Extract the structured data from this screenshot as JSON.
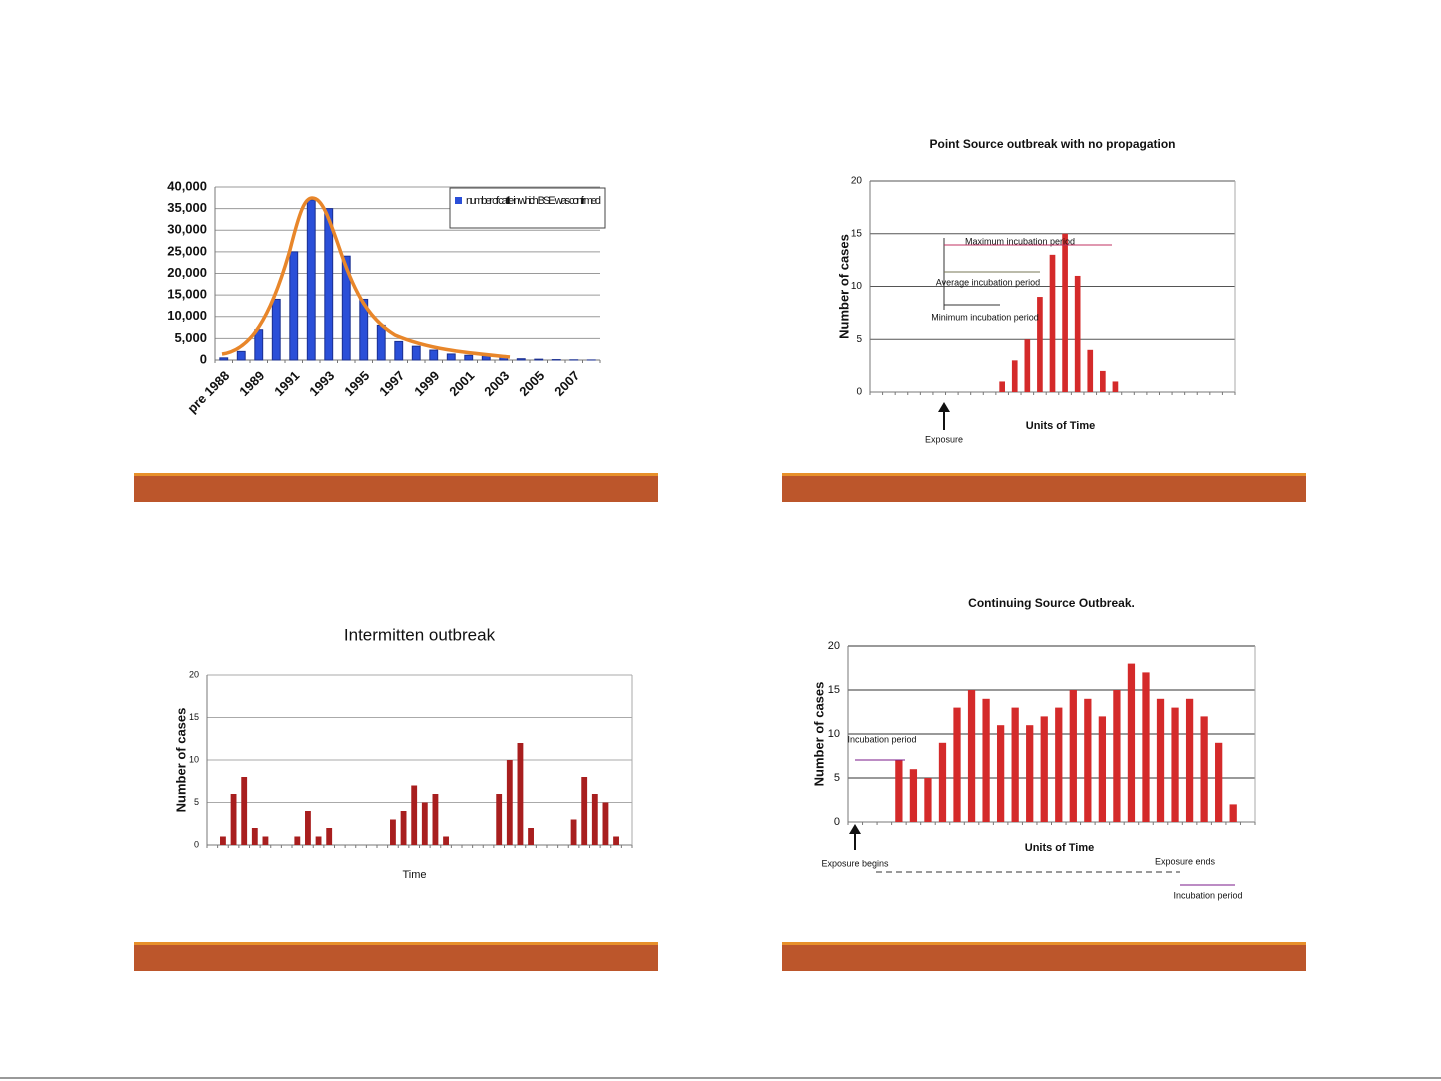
{
  "chart_data": [
    {
      "type": "bar",
      "legend": "number of cattle in which BSE was confirmed",
      "categories": [
        "pre 1988",
        null,
        "1989",
        null,
        "1991",
        null,
        "1993",
        null,
        "1995",
        null,
        "1997",
        null,
        "1999",
        null,
        "2001",
        null,
        "2003",
        null,
        "2005",
        null,
        "2007",
        null
      ],
      "values": [
        500,
        2000,
        7000,
        14000,
        25000,
        37000,
        35000,
        24000,
        14000,
        8000,
        4300,
        3200,
        2300,
        1400,
        1100,
        1000,
        600,
        300,
        200,
        100,
        50,
        20
      ],
      "color": "#2a4fd8",
      "ylim": [
        0,
        40000
      ],
      "yticks": [
        0,
        {
          "value": 5000,
          "label": "5,000"
        },
        {
          "value": 10000,
          "label": "10,000"
        },
        {
          "value": 15000,
          "label": "15,000"
        },
        {
          "value": 20000,
          "label": "20,000"
        },
        {
          "value": 25000,
          "label": "25,000"
        },
        {
          "value": 30000,
          "label": "30,000"
        },
        {
          "value": 35000,
          "label": "35,000"
        },
        {
          "value": 40000,
          "label": "40,000"
        }
      ],
      "grid": true
    },
    {
      "type": "bar",
      "title": "Point Source outbreak with no propagation",
      "xlabel": "Units of Time",
      "ylabel": "Number of cases",
      "annotations": [
        "Maximum incubation period",
        "Average incubation period",
        "Minimum incubation period",
        "Exposure"
      ],
      "categories": [
        null,
        null,
        null,
        null,
        null,
        null,
        null,
        null,
        null,
        null,
        null,
        null,
        null,
        null,
        null,
        null,
        null,
        null,
        null,
        null,
        null,
        null,
        null,
        null,
        null,
        null,
        null,
        null,
        null
      ],
      "values": [
        null,
        null,
        null,
        null,
        null,
        null,
        null,
        null,
        null,
        null,
        1,
        3,
        5,
        9,
        13,
        15,
        11,
        4,
        2,
        1,
        null,
        null,
        null,
        null,
        null,
        null,
        null,
        null,
        null
      ],
      "color": "#d42a2a",
      "ylim": [
        0,
        20
      ],
      "yticks": [
        0,
        5,
        10,
        15,
        20
      ],
      "grid": true
    },
    {
      "type": "bar",
      "title": "Intermitten outbreak",
      "xlabel": "Time",
      "ylabel": "Number of cases",
      "categories": [
        null,
        null,
        null,
        null,
        null,
        null,
        null,
        null,
        null,
        null,
        null,
        null,
        null,
        null,
        null,
        null,
        null,
        null,
        null,
        null,
        null,
        null,
        null,
        null,
        null,
        null,
        null,
        null,
        null,
        null,
        null,
        null,
        null,
        null,
        null,
        null,
        null,
        null,
        null,
        null
      ],
      "values": [
        null,
        1,
        6,
        8,
        2,
        1,
        null,
        null,
        1,
        4,
        1,
        2,
        null,
        null,
        null,
        null,
        null,
        3,
        4,
        7,
        5,
        6,
        1,
        null,
        null,
        null,
        null,
        6,
        10,
        12,
        2,
        null,
        null,
        null,
        3,
        8,
        6,
        5,
        1,
        null
      ],
      "color": "#a81e1e",
      "ylim": [
        0,
        20
      ],
      "yticks": [
        0,
        5,
        10,
        15,
        20
      ],
      "grid": true
    },
    {
      "type": "bar",
      "title": "Continuing Source Outbreak.",
      "xlabel": "Units of Time",
      "ylabel": "Number of cases",
      "annotations": [
        "Incubation period",
        "Exposure begins",
        "Exposure ends",
        "Incubation period"
      ],
      "categories": [
        null,
        null,
        null,
        null,
        null,
        null,
        null,
        null,
        null,
        null,
        null,
        null,
        null,
        null,
        null,
        null,
        null,
        null,
        null,
        null,
        null,
        null,
        null,
        null,
        null,
        null,
        null,
        null
      ],
      "values": [
        null,
        null,
        null,
        7,
        6,
        5,
        9,
        13,
        15,
        14,
        11,
        13,
        11,
        12,
        13,
        15,
        14,
        12,
        15,
        18,
        17,
        14,
        13,
        14,
        12,
        9,
        2,
        null
      ],
      "color": "#d42a2a",
      "ylim": [
        0,
        20
      ],
      "yticks": [
        0,
        5,
        10,
        15,
        20
      ],
      "grid": true
    }
  ]
}
